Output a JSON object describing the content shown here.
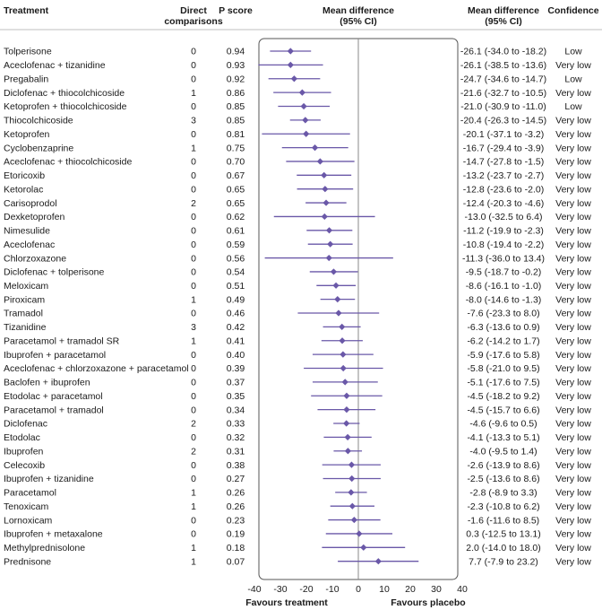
{
  "headers": {
    "treatment": "Treatment",
    "direct_line1": "Direct",
    "direct_line2": "comparisons",
    "pscore": "P score",
    "md_line1": "Mean difference",
    "md_line2": "(95% CI)",
    "md_text_line1": "Mean difference",
    "md_text_line2": "(95% CI)",
    "confidence": "Confidence"
  },
  "footer": {
    "left": "Favours treatment",
    "right": "Favours placebo"
  },
  "colors": {
    "accent": "#6a58a8",
    "reference_line": "#888888",
    "box": "#555555"
  },
  "chart_data": {
    "type": "forest",
    "xlim": [
      -40,
      40
    ],
    "xticks": [
      "-40",
      "-30",
      "-20",
      "-10",
      "0",
      "10",
      "20",
      "30",
      "40"
    ],
    "xtick_values": [
      -40,
      -30,
      -20,
      -10,
      0,
      10,
      20,
      30,
      40
    ],
    "reference": 0,
    "rows": [
      {
        "treatment": "Tolperisone",
        "direct": "0",
        "pscore": "0.94",
        "mean": -26.1,
        "lower": -34.0,
        "upper": -18.2,
        "ci_text": "-26.1 (-34.0 to -18.2)",
        "confidence": "Low"
      },
      {
        "treatment": "Aceclofenac + tizanidine",
        "direct": "0",
        "pscore": "0.93",
        "mean": -26.1,
        "lower": -38.5,
        "upper": -13.6,
        "ci_text": "-26.1 (-38.5 to -13.6)",
        "confidence": "Very low"
      },
      {
        "treatment": "Pregabalin",
        "direct": "0",
        "pscore": "0.92",
        "mean": -24.7,
        "lower": -34.6,
        "upper": -14.7,
        "ci_text": "-24.7 (-34.6 to -14.7)",
        "confidence": "Low"
      },
      {
        "treatment": "Diclofenac + thiocolchicoside",
        "direct": "1",
        "pscore": "0.86",
        "mean": -21.6,
        "lower": -32.7,
        "upper": -10.5,
        "ci_text": "-21.6 (-32.7 to -10.5)",
        "confidence": "Very low"
      },
      {
        "treatment": "Ketoprofen + thiocolchicoside",
        "direct": "0",
        "pscore": "0.85",
        "mean": -21.0,
        "lower": -30.9,
        "upper": -11.0,
        "ci_text": "-21.0 (-30.9 to -11.0)",
        "confidence": "Low"
      },
      {
        "treatment": "Thiocolchicoside",
        "direct": "3",
        "pscore": "0.85",
        "mean": -20.4,
        "lower": -26.3,
        "upper": -14.5,
        "ci_text": "-20.4 (-26.3 to -14.5)",
        "confidence": "Very low"
      },
      {
        "treatment": "Ketoprofen",
        "direct": "0",
        "pscore": "0.81",
        "mean": -20.1,
        "lower": -37.1,
        "upper": -3.2,
        "ci_text": "-20.1 (-37.1 to -3.2)",
        "confidence": "Very low"
      },
      {
        "treatment": "Cyclobenzaprine",
        "direct": "1",
        "pscore": "0.75",
        "mean": -16.7,
        "lower": -29.4,
        "upper": -3.9,
        "ci_text": "-16.7 (-29.4 to -3.9)",
        "confidence": "Very low"
      },
      {
        "treatment": "Aceclofenac + thiocolchicoside",
        "direct": "0",
        "pscore": "0.70",
        "mean": -14.7,
        "lower": -27.8,
        "upper": -1.5,
        "ci_text": "-14.7 (-27.8 to -1.5)",
        "confidence": "Very low"
      },
      {
        "treatment": "Etoricoxib",
        "direct": "0",
        "pscore": "0.67",
        "mean": -13.2,
        "lower": -23.7,
        "upper": -2.7,
        "ci_text": "-13.2 (-23.7 to -2.7)",
        "confidence": "Very low"
      },
      {
        "treatment": "Ketorolac",
        "direct": "0",
        "pscore": "0.65",
        "mean": -12.8,
        "lower": -23.6,
        "upper": -2.0,
        "ci_text": "-12.8 (-23.6 to -2.0)",
        "confidence": "Very low"
      },
      {
        "treatment": "Carisoprodol",
        "direct": "2",
        "pscore": "0.65",
        "mean": -12.4,
        "lower": -20.3,
        "upper": -4.6,
        "ci_text": "-12.4 (-20.3 to -4.6)",
        "confidence": "Very low"
      },
      {
        "treatment": "Dexketoprofen",
        "direct": "0",
        "pscore": "0.62",
        "mean": -13.0,
        "lower": -32.5,
        "upper": 6.4,
        "ci_text": "-13.0 (-32.5 to 6.4)",
        "confidence": "Very low"
      },
      {
        "treatment": "Nimesulide",
        "direct": "0",
        "pscore": "0.61",
        "mean": -11.2,
        "lower": -19.9,
        "upper": -2.3,
        "ci_text": "-11.2 (-19.9 to -2.3)",
        "confidence": "Very low"
      },
      {
        "treatment": "Aceclofenac",
        "direct": "0",
        "pscore": "0.59",
        "mean": -10.8,
        "lower": -19.4,
        "upper": -2.2,
        "ci_text": "-10.8 (-19.4 to -2.2)",
        "confidence": "Very low"
      },
      {
        "treatment": "Chlorzoxazone",
        "direct": "0",
        "pscore": "0.56",
        "mean": -11.3,
        "lower": -36.0,
        "upper": 13.4,
        "ci_text": "-11.3 (-36.0 to 13.4)",
        "confidence": "Very low"
      },
      {
        "treatment": "Diclofenac + tolperisone",
        "direct": "0",
        "pscore": "0.54",
        "mean": -9.5,
        "lower": -18.7,
        "upper": -0.2,
        "ci_text": "-9.5 (-18.7 to -0.2)",
        "confidence": "Very low"
      },
      {
        "treatment": "Meloxicam",
        "direct": "0",
        "pscore": "0.51",
        "mean": -8.6,
        "lower": -16.1,
        "upper": -1.0,
        "ci_text": "-8.6 (-16.1 to -1.0)",
        "confidence": "Very low"
      },
      {
        "treatment": "Piroxicam",
        "direct": "1",
        "pscore": "0.49",
        "mean": -8.0,
        "lower": -14.6,
        "upper": -1.3,
        "ci_text": "-8.0 (-14.6 to -1.3)",
        "confidence": "Very low"
      },
      {
        "treatment": "Tramadol",
        "direct": "0",
        "pscore": "0.46",
        "mean": -7.6,
        "lower": -23.3,
        "upper": 8.0,
        "ci_text": "-7.6 (-23.3 to 8.0)",
        "confidence": "Very low"
      },
      {
        "treatment": "Tizanidine",
        "direct": "3",
        "pscore": "0.42",
        "mean": -6.3,
        "lower": -13.6,
        "upper": 0.9,
        "ci_text": "-6.3 (-13.6 to 0.9)",
        "confidence": "Very low"
      },
      {
        "treatment": "Paracetamol + tramadol SR",
        "direct": "1",
        "pscore": "0.41",
        "mean": -6.2,
        "lower": -14.2,
        "upper": 1.7,
        "ci_text": "-6.2 (-14.2 to 1.7)",
        "confidence": "Very low"
      },
      {
        "treatment": "Ibuprofen + paracetamol",
        "direct": "0",
        "pscore": "0.40",
        "mean": -5.9,
        "lower": -17.6,
        "upper": 5.8,
        "ci_text": "-5.9 (-17.6 to 5.8)",
        "confidence": "Very low"
      },
      {
        "treatment": "Aceclofenac + chlorzoxazone + paracetamol",
        "direct": "0",
        "pscore": "0.39",
        "mean": -5.8,
        "lower": -21.0,
        "upper": 9.5,
        "ci_text": "-5.8 (-21.0 to 9.5)",
        "confidence": "Very low"
      },
      {
        "treatment": "Baclofen + ibuprofen",
        "direct": "0",
        "pscore": "0.37",
        "mean": -5.1,
        "lower": -17.6,
        "upper": 7.5,
        "ci_text": "-5.1 (-17.6 to 7.5)",
        "confidence": "Very low"
      },
      {
        "treatment": "Etodolac + paracetamol",
        "direct": "0",
        "pscore": "0.35",
        "mean": -4.5,
        "lower": -18.2,
        "upper": 9.2,
        "ci_text": "-4.5 (-18.2 to 9.2)",
        "confidence": "Very low"
      },
      {
        "treatment": "Paracetamol + tramadol",
        "direct": "0",
        "pscore": "0.34",
        "mean": -4.5,
        "lower": -15.7,
        "upper": 6.6,
        "ci_text": "-4.5 (-15.7 to 6.6)",
        "confidence": "Very low"
      },
      {
        "treatment": "Diclofenac",
        "direct": "2",
        "pscore": "0.33",
        "mean": -4.6,
        "lower": -9.6,
        "upper": 0.5,
        "ci_text": "-4.6 (-9.6 to 0.5)",
        "confidence": "Very low"
      },
      {
        "treatment": "Etodolac",
        "direct": "0",
        "pscore": "0.32",
        "mean": -4.1,
        "lower": -13.3,
        "upper": 5.1,
        "ci_text": "-4.1 (-13.3 to 5.1)",
        "confidence": "Very low"
      },
      {
        "treatment": "Ibuprofen",
        "direct": "2",
        "pscore": "0.31",
        "mean": -4.0,
        "lower": -9.5,
        "upper": 1.4,
        "ci_text": "-4.0 (-9.5 to 1.4)",
        "confidence": "Very low"
      },
      {
        "treatment": "Celecoxib",
        "direct": "0",
        "pscore": "0.38",
        "mean": -2.6,
        "lower": -13.9,
        "upper": 8.6,
        "ci_text": "-2.6 (-13.9 to 8.6)",
        "confidence": "Very low"
      },
      {
        "treatment": "Ibuprofen + tizanidine",
        "direct": "0",
        "pscore": "0.27",
        "mean": -2.5,
        "lower": -13.6,
        "upper": 8.6,
        "ci_text": "-2.5 (-13.6 to 8.6)",
        "confidence": "Very low"
      },
      {
        "treatment": "Paracetamol",
        "direct": "1",
        "pscore": "0.26",
        "mean": -2.8,
        "lower": -8.9,
        "upper": 3.3,
        "ci_text": "-2.8 (-8.9 to 3.3)",
        "confidence": "Very low"
      },
      {
        "treatment": "Tenoxicam",
        "direct": "1",
        "pscore": "0.26",
        "mean": -2.3,
        "lower": -10.8,
        "upper": 6.2,
        "ci_text": "-2.3 (-10.8 to 6.2)",
        "confidence": "Very low"
      },
      {
        "treatment": "Lornoxicam",
        "direct": "0",
        "pscore": "0.23",
        "mean": -1.6,
        "lower": -11.6,
        "upper": 8.5,
        "ci_text": "-1.6 (-11.6 to 8.5)",
        "confidence": "Very low"
      },
      {
        "treatment": "Ibuprofen + metaxalone",
        "direct": "0",
        "pscore": "0.19",
        "mean": 0.3,
        "lower": -12.5,
        "upper": 13.1,
        "ci_text": "0.3 (-12.5 to 13.1)",
        "confidence": "Very low"
      },
      {
        "treatment": "Methylprednisolone",
        "direct": "1",
        "pscore": "0.18",
        "mean": 2.0,
        "lower": -14.0,
        "upper": 18.0,
        "ci_text": "2.0 (-14.0 to 18.0)",
        "confidence": "Very low"
      },
      {
        "treatment": "Prednisone",
        "direct": "1",
        "pscore": "0.07",
        "mean": 7.7,
        "lower": -7.9,
        "upper": 23.2,
        "ci_text": "7.7 (-7.9 to 23.2)",
        "confidence": "Very low"
      }
    ]
  }
}
